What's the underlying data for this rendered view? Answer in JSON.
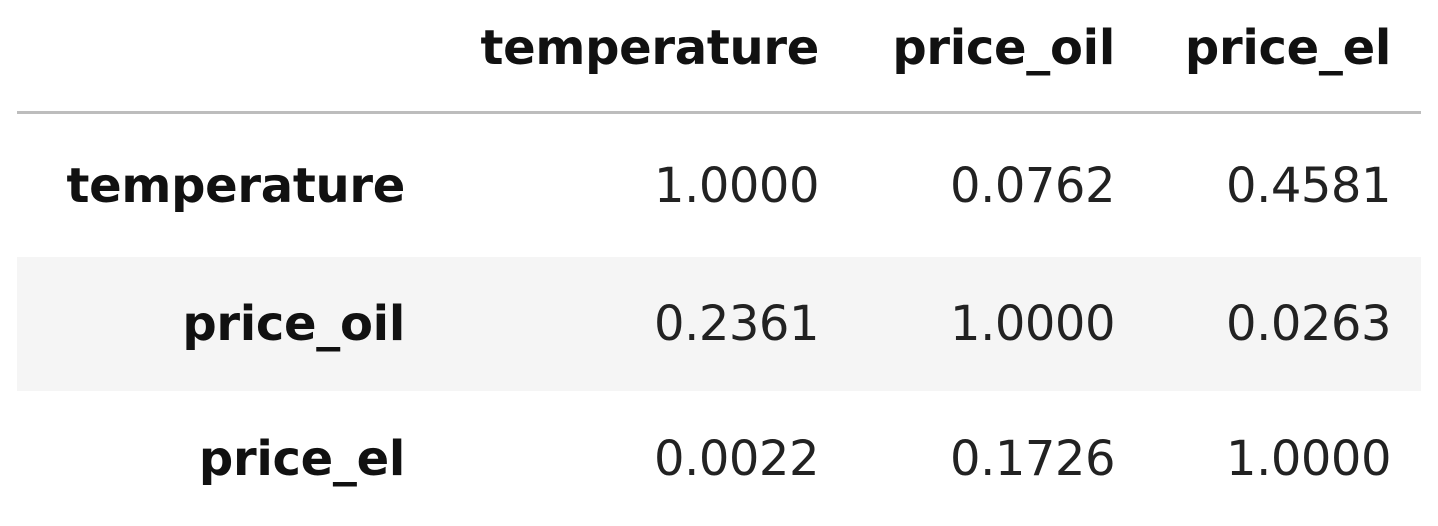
{
  "table": {
    "columns": [
      "",
      "temperature",
      "price_oil",
      "price_el"
    ],
    "rows": [
      {
        "label": "temperature",
        "values": [
          "1.0000",
          "0.0762",
          "0.4581"
        ]
      },
      {
        "label": "price_oil",
        "values": [
          "0.2361",
          "1.0000",
          "0.0263"
        ]
      },
      {
        "label": "price_el",
        "values": [
          "0.0022",
          "0.1726",
          "1.0000"
        ]
      }
    ]
  }
}
